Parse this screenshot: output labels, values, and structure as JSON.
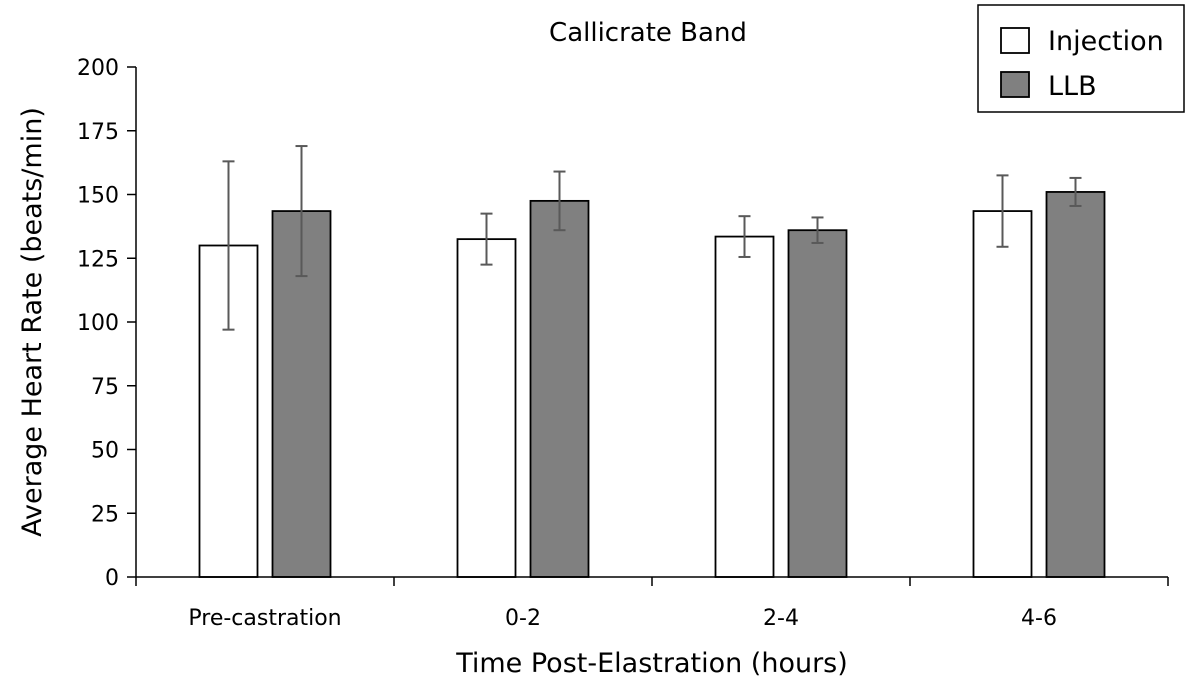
{
  "chart_data": {
    "type": "bar",
    "title": "Callicrate Band",
    "xlabel": "Time Post-Elastration (hours)",
    "ylabel": "Average Heart Rate (beats/min)",
    "categories": [
      "Pre-castration",
      "0-2",
      "2-4",
      "4-6"
    ],
    "ylim": [
      0,
      200
    ],
    "yticks": [
      "0",
      "25",
      "50",
      "75",
      "100",
      "125",
      "150",
      "175",
      "200"
    ],
    "grid": false,
    "legend_position": "top-right",
    "series": [
      {
        "name": "Injection",
        "color": "#ffffff",
        "values": [
          130,
          132.5,
          133.5,
          143.5
        ],
        "error": [
          33,
          10,
          8,
          14
        ]
      },
      {
        "name": "LLB",
        "color": "#808080",
        "values": [
          143.5,
          147.5,
          136,
          151
        ],
        "error": [
          25.5,
          11.5,
          5,
          5.5
        ]
      }
    ]
  }
}
